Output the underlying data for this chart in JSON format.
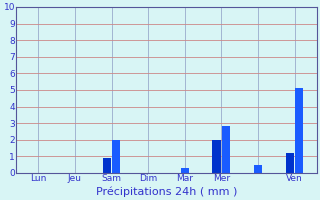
{
  "title": "",
  "xlabel": "Précipitations 24h ( mm )",
  "ylabel": "",
  "ylim": [
    0,
    10
  ],
  "yticks": [
    0,
    1,
    2,
    3,
    4,
    5,
    6,
    7,
    8,
    9,
    10
  ],
  "background_color": "#d8f5f5",
  "bar_color1": "#0033cc",
  "bar_color2": "#1a5cff",
  "grid_color": "#cc9999",
  "grid_color2": "#99bbcc",
  "bar_data": [
    {
      "label": "Lun",
      "bars": []
    },
    {
      "label": "Jeu",
      "bars": []
    },
    {
      "label": "Sam",
      "bars": [
        0.9,
        2.0
      ]
    },
    {
      "label": "Dim",
      "bars": []
    },
    {
      "label": "Mar",
      "bars": [
        0.3
      ]
    },
    {
      "label": "Mer",
      "bars": [
        2.0,
        2.8
      ]
    },
    {
      "label": "",
      "bars": [
        0.5
      ]
    },
    {
      "label": "Ven",
      "bars": [
        1.2,
        5.1
      ]
    }
  ],
  "tick_label_color": "#3333cc",
  "axis_label_fontsize": 8,
  "tick_fontsize": 6.5,
  "n_groups": 8,
  "group_width": 1.0
}
